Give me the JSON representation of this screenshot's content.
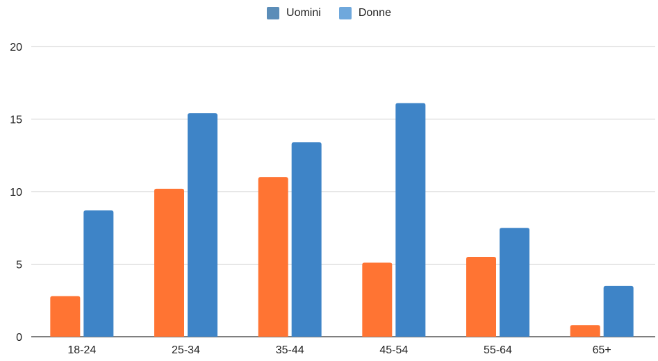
{
  "chart_data": {
    "type": "bar",
    "categories": [
      "18-24",
      "25-34",
      "35-44",
      "45-54",
      "55-64",
      "65+"
    ],
    "series": [
      {
        "name": "Uomini",
        "legend_color": "#5B8DB8",
        "bar_color": "#FF7433",
        "values": [
          2.8,
          10.2,
          11.0,
          5.1,
          5.5,
          0.8
        ]
      },
      {
        "name": "Donne",
        "legend_color": "#6FA8DC",
        "bar_color": "#3E84C7",
        "values": [
          8.7,
          15.4,
          13.4,
          16.1,
          7.5,
          3.5
        ]
      }
    ],
    "ylim": [
      0,
      20
    ],
    "yticks": [
      "0",
      "5",
      "10",
      "15",
      "20"
    ],
    "grid": true,
    "legend_position": "top-center"
  }
}
